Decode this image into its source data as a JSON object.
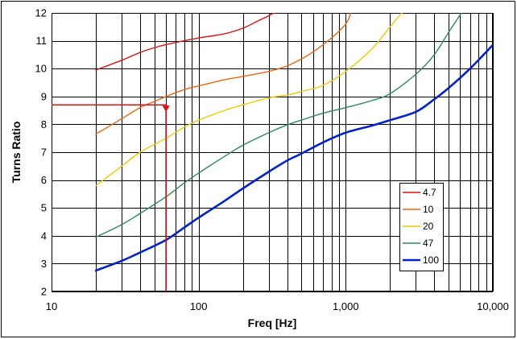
{
  "chart_data": {
    "type": "line",
    "title": "",
    "xlabel": "Freq [Hz]",
    "ylabel": "Turns Ratio",
    "xscale": "log",
    "xlim": [
      10,
      10000
    ],
    "ylim": [
      2,
      12
    ],
    "x_ticks": [
      10,
      100,
      1000,
      10000
    ],
    "x_tick_labels": [
      "10",
      "100",
      "1,000",
      "10,000"
    ],
    "y_ticks": [
      2,
      3,
      4,
      5,
      6,
      7,
      8,
      9,
      10,
      11,
      12
    ],
    "y_tick_labels": [
      "2",
      "3",
      "4",
      "5",
      "6",
      "7",
      "8",
      "9",
      "10",
      "11",
      "12"
    ],
    "grid": true,
    "legend_position": "bottom-right",
    "series": [
      {
        "name": "4.7",
        "color": "#dd1111",
        "points": [
          [
            20,
            9.95
          ],
          [
            30,
            10.3
          ],
          [
            40,
            10.58
          ],
          [
            50,
            10.75
          ],
          [
            60,
            10.86
          ],
          [
            80,
            11.0
          ],
          [
            100,
            11.1
          ],
          [
            150,
            11.25
          ],
          [
            200,
            11.45
          ],
          [
            250,
            11.7
          ],
          [
            300,
            11.9
          ],
          [
            350,
            12.1
          ]
        ]
      },
      {
        "name": "10",
        "color": "#ee6611",
        "points": [
          [
            20,
            7.65
          ],
          [
            30,
            8.2
          ],
          [
            40,
            8.6
          ],
          [
            50,
            8.82
          ],
          [
            60,
            9.0
          ],
          [
            80,
            9.25
          ],
          [
            100,
            9.38
          ],
          [
            150,
            9.6
          ],
          [
            200,
            9.72
          ],
          [
            300,
            9.9
          ],
          [
            400,
            10.1
          ],
          [
            500,
            10.35
          ],
          [
            600,
            10.6
          ],
          [
            800,
            11.1
          ],
          [
            1000,
            11.6
          ],
          [
            1100,
            12.1
          ]
        ]
      },
      {
        "name": "20",
        "color": "#eecc00",
        "points": [
          [
            20,
            5.8
          ],
          [
            30,
            6.5
          ],
          [
            40,
            7.0
          ],
          [
            60,
            7.5
          ],
          [
            80,
            7.9
          ],
          [
            100,
            8.15
          ],
          [
            150,
            8.5
          ],
          [
            200,
            8.7
          ],
          [
            300,
            8.95
          ],
          [
            400,
            9.05
          ],
          [
            500,
            9.18
          ],
          [
            700,
            9.4
          ],
          [
            1000,
            9.9
          ],
          [
            1500,
            10.7
          ],
          [
            2000,
            11.5
          ],
          [
            2500,
            12.1
          ]
        ]
      },
      {
        "name": "47",
        "color": "#2e8b57",
        "points": [
          [
            20,
            3.95
          ],
          [
            30,
            4.4
          ],
          [
            40,
            4.8
          ],
          [
            60,
            5.4
          ],
          [
            80,
            5.9
          ],
          [
            100,
            6.25
          ],
          [
            150,
            6.85
          ],
          [
            200,
            7.25
          ],
          [
            300,
            7.7
          ],
          [
            400,
            7.98
          ],
          [
            500,
            8.15
          ],
          [
            700,
            8.4
          ],
          [
            1000,
            8.6
          ],
          [
            1500,
            8.85
          ],
          [
            2000,
            9.1
          ],
          [
            3000,
            9.8
          ],
          [
            4000,
            10.5
          ],
          [
            5000,
            11.3
          ],
          [
            6300,
            12.1
          ]
        ]
      },
      {
        "name": "100",
        "color": "#0022cc",
        "points": [
          [
            20,
            2.75
          ],
          [
            30,
            3.1
          ],
          [
            40,
            3.4
          ],
          [
            60,
            3.85
          ],
          [
            80,
            4.3
          ],
          [
            100,
            4.65
          ],
          [
            150,
            5.25
          ],
          [
            200,
            5.7
          ],
          [
            300,
            6.3
          ],
          [
            400,
            6.7
          ],
          [
            500,
            6.95
          ],
          [
            700,
            7.35
          ],
          [
            1000,
            7.7
          ],
          [
            1500,
            7.95
          ],
          [
            2000,
            8.15
          ],
          [
            3000,
            8.45
          ],
          [
            4000,
            8.9
          ],
          [
            5000,
            9.3
          ],
          [
            7000,
            10.0
          ],
          [
            10000,
            10.85
          ]
        ]
      }
    ],
    "annotations": [
      {
        "name": "arrow",
        "color": "#dd1111",
        "points": [
          [
            10,
            8.7
          ],
          [
            60,
            8.7
          ],
          [
            60,
            2
          ]
        ],
        "arrowhead_at": [
          60,
          8.7
        ]
      }
    ]
  }
}
